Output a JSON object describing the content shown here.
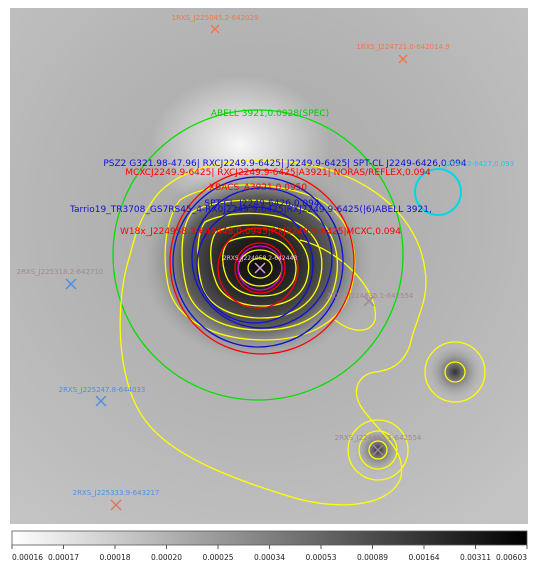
{
  "image": {
    "colorbar": {
      "ticks": [
        "0.00016",
        "0.00017",
        "0.00018",
        "0.00020",
        "0.00025",
        "0.00034",
        "0.00053",
        "0.00089",
        "0.00164",
        "0.00311",
        "0.00603"
      ]
    }
  },
  "annotations": {
    "green_title": "ABELL 3921,0.0928(SPEC)",
    "blue_line1": "PSZ2 G321.98-47.96| RXCJ2249.9-6425| J2249.9-6425| SPT-CL J2249-6426,0.094",
    "red_line1": "MCXCJ2249.9-6425| RXCJ2249.9-6425|A3921| NORAS/REFLEX,0.094",
    "red_xbacs": "XBACS_A3921,0.0950",
    "blue_spt": "SPT-CL_J2249-6426,0.094",
    "blue_tarrio": "Tarrio19_TR3708_GS7RS45_4-RX0J2249.9-6425|RXJ2249.9-6425(|6)ABELL 3921,",
    "red_w18x": "W18x_J224958.3-642448,0.0945|RXJ2249.9-6425|MCXC,0.094",
    "magenta_center": "2RXS_J224958.2-642448",
    "cyan_right": "J2250.2-6427,0.093",
    "orange_top": "1RXS_J225045.2-642029",
    "orange_topright": "1RXS_J224721.0-642014.9",
    "gray_left": "2RXS_J225318.2-642710",
    "gray_mid_right": "2RXS_J224835.1-642554",
    "blue_left": "2RXS_J225247.8-644033",
    "gray_bottom_right": "2RXS_J224835.1-642554",
    "blue_bottom_left": "2RXS_J225333.9-643217"
  },
  "colors": {
    "green": "#00e000",
    "blue": "#1010d0",
    "red": "#ff0000",
    "yellow": "#ffff00",
    "cyan": "#00d8e8",
    "magenta": "#d000d0",
    "orange": "#f07848",
    "steelblue": "#4f8fe0",
    "gray": "#a08898"
  }
}
